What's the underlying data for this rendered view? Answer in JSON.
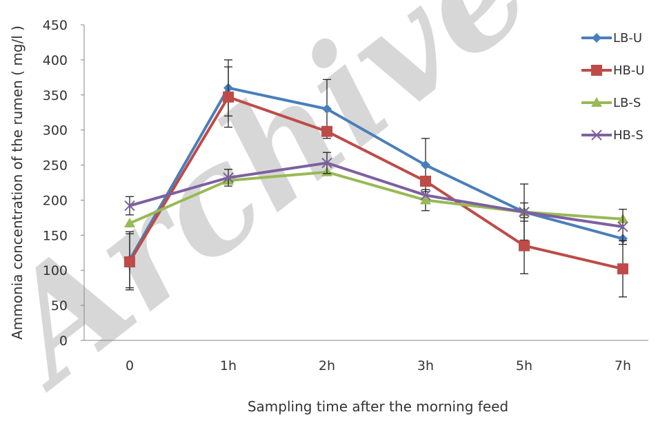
{
  "chart_data": {
    "type": "line",
    "categories": [
      "0",
      "1h",
      "2h",
      "3h",
      "5h",
      "7h"
    ],
    "xlabel": "Sampling time after the morning feed",
    "ylabel": "Ammonia concentration of the rumen ( mg/l )",
    "ylim": [
      0,
      450
    ],
    "yticks": [
      0,
      50,
      100,
      150,
      200,
      250,
      300,
      350,
      400,
      450
    ],
    "grid": false,
    "legend_position": "right",
    "series": [
      {
        "name": "LB-U",
        "color": "#4a7ebb",
        "marker": "diamond",
        "values": [
          115,
          360,
          330,
          250,
          183,
          145
        ],
        "error": [
          40,
          40,
          42,
          38,
          40,
          0
        ]
      },
      {
        "name": "HB-U",
        "color": "#be4b48",
        "marker": "square",
        "values": [
          112,
          347,
          298,
          227,
          135,
          102
        ],
        "error": [
          40,
          43,
          0,
          0,
          40,
          40
        ]
      },
      {
        "name": "LB-S",
        "color": "#98b954",
        "marker": "triangle",
        "values": [
          167,
          228,
          240,
          200,
          183,
          173
        ],
        "error": [
          0,
          0,
          0,
          15,
          0,
          0
        ]
      },
      {
        "name": "HB-S",
        "color": "#7d60a0",
        "marker": "x",
        "values": [
          192,
          232,
          253,
          207,
          183,
          162
        ],
        "error": [
          13,
          12,
          15,
          0,
          13,
          25
        ]
      }
    ]
  },
  "watermark": "Archive of SID"
}
